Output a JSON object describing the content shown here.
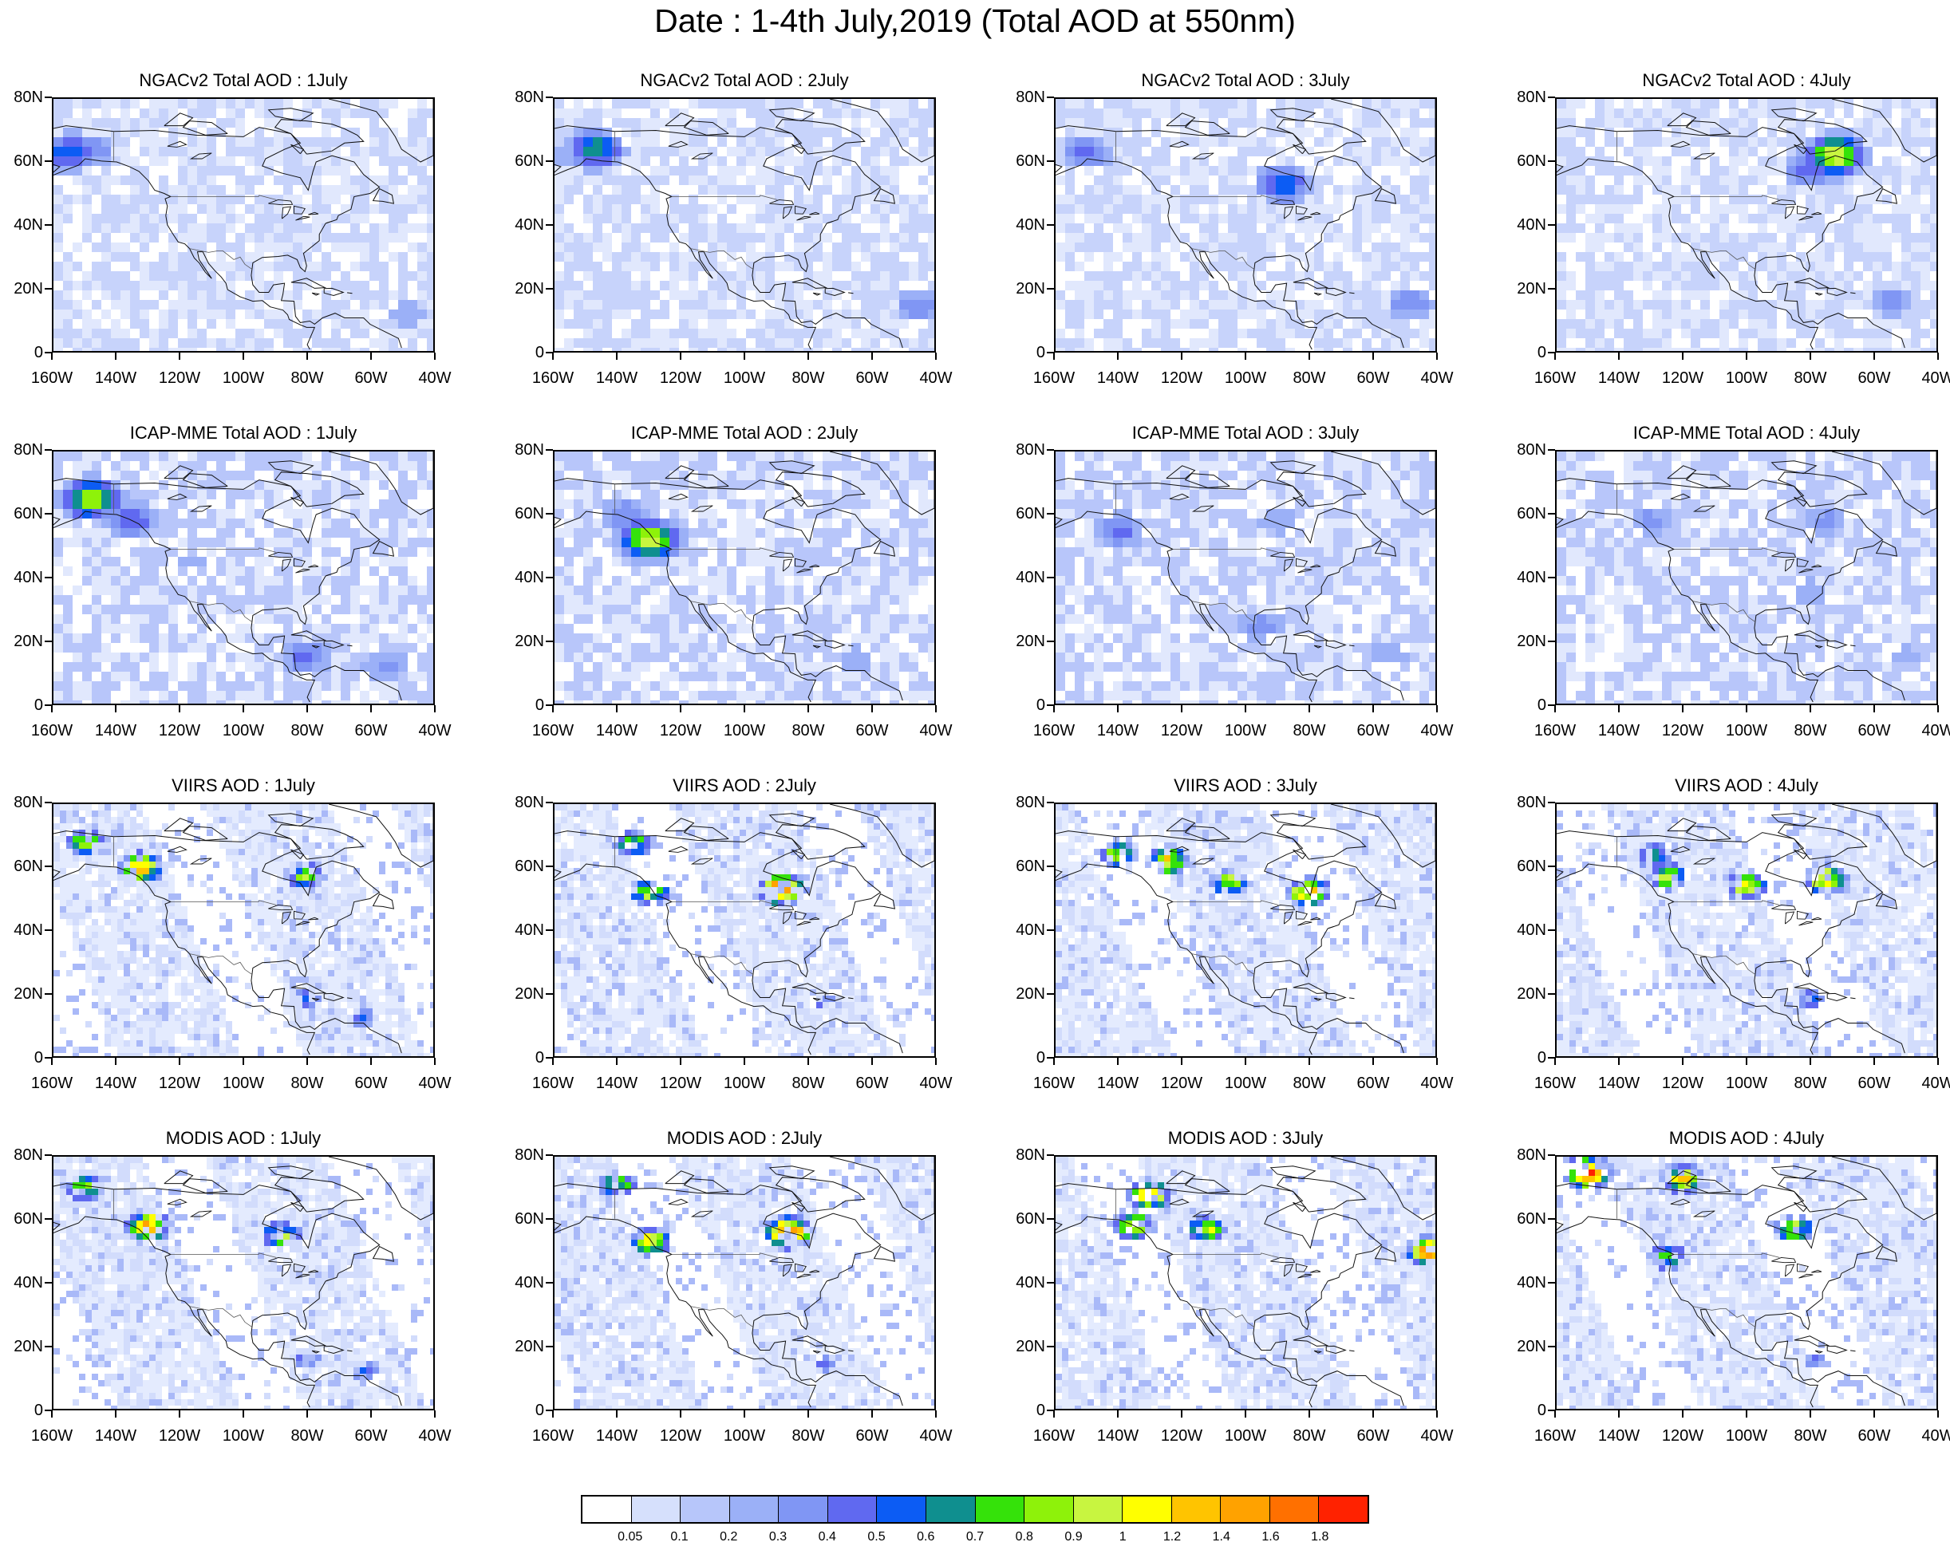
{
  "title": "Date : 1-4th July,2019 (Total AOD at 550nm)",
  "lat_labels": [
    "80N",
    "60N",
    "40N",
    "20N",
    "0"
  ],
  "lon_labels": [
    "160W",
    "140W",
    "120W",
    "100W",
    "80W",
    "60W",
    "40W"
  ],
  "map_extent": {
    "lon_min": -160,
    "lon_max": -40,
    "lat_min": 0,
    "lat_max": 80
  },
  "rows": [
    {
      "id": "ngac",
      "panels": [
        {
          "title": "NGACv2 Total AOD : 1July",
          "style": "model",
          "base": "#c7d3fb",
          "hotspots": [
            {
              "lon": -155,
              "lat": 63,
              "v": 0.6
            },
            {
              "lon": -148,
              "lat": 64,
              "v": 0.4
            },
            {
              "lon": -135,
              "lat": 55,
              "v": 0.2
            },
            {
              "lon": -48,
              "lat": 12,
              "v": 0.3
            },
            {
              "lon": -60,
              "lat": 15,
              "v": 0.2
            }
          ]
        },
        {
          "title": "NGACv2 Total AOD : 2July",
          "style": "model",
          "base": "#c7d3fb",
          "hotspots": [
            {
              "lon": -147,
              "lat": 64,
              "v": 0.7
            },
            {
              "lon": -155,
              "lat": 62,
              "v": 0.3
            },
            {
              "lon": -45,
              "lat": 14,
              "v": 0.4
            },
            {
              "lon": -60,
              "lat": 12,
              "v": 0.2
            }
          ]
        },
        {
          "title": "NGACv2 Total AOD : 3July",
          "style": "model",
          "base": "#c7d3fb",
          "hotspots": [
            {
              "lon": -150,
              "lat": 63,
              "v": 0.45
            },
            {
              "lon": -88,
              "lat": 53,
              "v": 0.6
            },
            {
              "lon": -48,
              "lat": 15,
              "v": 0.4
            },
            {
              "lon": -70,
              "lat": 18,
              "v": 0.2
            }
          ]
        },
        {
          "title": "NGACv2 Total AOD : 4July",
          "style": "model",
          "base": "#c7d3fb",
          "hotspots": [
            {
              "lon": -72,
              "lat": 62,
              "v": 1.0
            },
            {
              "lon": -80,
              "lat": 58,
              "v": 0.5
            },
            {
              "lon": -145,
              "lat": 60,
              "v": 0.2
            },
            {
              "lon": -55,
              "lat": 16,
              "v": 0.35
            }
          ]
        }
      ]
    },
    {
      "id": "icap",
      "panels": [
        {
          "title": "ICAP-MME Total AOD : 1July",
          "style": "model",
          "base": "#b8c6fa",
          "hotspots": [
            {
              "lon": -148,
              "lat": 65,
              "v": 0.9
            },
            {
              "lon": -135,
              "lat": 58,
              "v": 0.5
            },
            {
              "lon": -80,
              "lat": 15,
              "v": 0.45
            },
            {
              "lon": -55,
              "lat": 12,
              "v": 0.35
            },
            {
              "lon": -115,
              "lat": 45,
              "v": 0.25
            }
          ]
        },
        {
          "title": "ICAP-MME Total AOD : 2July",
          "style": "model",
          "base": "#b8c6fa",
          "hotspots": [
            {
              "lon": -130,
              "lat": 52,
              "v": 1.0
            },
            {
              "lon": -138,
              "lat": 60,
              "v": 0.4
            },
            {
              "lon": -105,
              "lat": 42,
              "v": 0.2
            },
            {
              "lon": -65,
              "lat": 14,
              "v": 0.3
            }
          ]
        },
        {
          "title": "ICAP-MME Total AOD : 3July",
          "style": "model",
          "base": "#b8c6fa",
          "hotspots": [
            {
              "lon": -140,
              "lat": 55,
              "v": 0.45
            },
            {
              "lon": -90,
              "lat": 58,
              "v": 0.3
            },
            {
              "lon": -95,
              "lat": 25,
              "v": 0.35
            },
            {
              "lon": -55,
              "lat": 16,
              "v": 0.3
            }
          ]
        },
        {
          "title": "ICAP-MME Total AOD : 4July",
          "style": "model",
          "base": "#b8c6fa",
          "hotspots": [
            {
              "lon": -130,
              "lat": 58,
              "v": 0.35
            },
            {
              "lon": -75,
              "lat": 58,
              "v": 0.35
            },
            {
              "lon": -80,
              "lat": 35,
              "v": 0.3
            },
            {
              "lon": -50,
              "lat": 15,
              "v": 0.25
            }
          ]
        }
      ]
    },
    {
      "id": "viirs",
      "panels": [
        {
          "title": "VIIRS AOD : 1July",
          "style": "satellite",
          "base": "#d2dcfc",
          "hotspots": [
            {
              "lon": -132,
              "lat": 60,
              "v": 1.2
            },
            {
              "lon": -150,
              "lat": 68,
              "v": 0.9
            },
            {
              "lon": -80,
              "lat": 57,
              "v": 0.8
            },
            {
              "lon": -80,
              "lat": 18,
              "v": 0.5
            },
            {
              "lon": -62,
              "lat": 12,
              "v": 0.45
            }
          ]
        },
        {
          "title": "VIIRS AOD : 2July",
          "style": "satellite",
          "base": "#d2dcfc",
          "hotspots": [
            {
              "lon": -88,
              "lat": 53,
              "v": 1.6
            },
            {
              "lon": -130,
              "lat": 52,
              "v": 0.9
            },
            {
              "lon": -135,
              "lat": 67,
              "v": 0.8
            },
            {
              "lon": -75,
              "lat": 18,
              "v": 0.4
            }
          ]
        },
        {
          "title": "VIIRS AOD : 3July",
          "style": "satellite",
          "base": "#d2dcfc",
          "hotspots": [
            {
              "lon": -125,
              "lat": 62,
              "v": 1.1
            },
            {
              "lon": -105,
              "lat": 55,
              "v": 0.9
            },
            {
              "lon": -80,
              "lat": 52,
              "v": 1.2
            },
            {
              "lon": -140,
              "lat": 64,
              "v": 0.8
            }
          ]
        },
        {
          "title": "VIIRS AOD : 4July",
          "style": "satellite",
          "base": "#d2dcfc",
          "hotspots": [
            {
              "lon": -125,
              "lat": 57,
              "v": 0.9
            },
            {
              "lon": -100,
              "lat": 54,
              "v": 1.0
            },
            {
              "lon": -75,
              "lat": 56,
              "v": 1.1
            },
            {
              "lon": -130,
              "lat": 64,
              "v": 0.7
            },
            {
              "lon": -80,
              "lat": 18,
              "v": 0.5
            }
          ]
        }
      ]
    },
    {
      "id": "modis",
      "panels": [
        {
          "title": "MODIS AOD : 1July",
          "style": "satellite",
          "base": "#d2dcfc",
          "hotspots": [
            {
              "lon": -130,
              "lat": 58,
              "v": 1.3
            },
            {
              "lon": -150,
              "lat": 70,
              "v": 0.9
            },
            {
              "lon": -88,
              "lat": 55,
              "v": 0.9
            },
            {
              "lon": -80,
              "lat": 16,
              "v": 0.45
            },
            {
              "lon": -62,
              "lat": 12,
              "v": 0.45
            }
          ]
        },
        {
          "title": "MODIS AOD : 2July",
          "style": "satellite",
          "base": "#d2dcfc",
          "hotspots": [
            {
              "lon": -130,
              "lat": 53,
              "v": 1.0
            },
            {
              "lon": -86,
              "lat": 56,
              "v": 1.7
            },
            {
              "lon": -140,
              "lat": 71,
              "v": 0.8
            },
            {
              "lon": -75,
              "lat": 14,
              "v": 0.4
            }
          ]
        },
        {
          "title": "MODIS AOD : 3July",
          "style": "satellite",
          "base": "#d2dcfc",
          "hotspots": [
            {
              "lon": -130,
              "lat": 68,
              "v": 1.2
            },
            {
              "lon": -135,
              "lat": 58,
              "v": 1.0
            },
            {
              "lon": -112,
              "lat": 57,
              "v": 0.9
            },
            {
              "lon": -42,
              "lat": 50,
              "v": 1.3
            }
          ]
        },
        {
          "title": "MODIS AOD : 4July",
          "style": "satellite",
          "base": "#d2dcfc",
          "hotspots": [
            {
              "lon": -120,
              "lat": 73,
              "v": 1.1
            },
            {
              "lon": -150,
              "lat": 75,
              "v": 1.7
            },
            {
              "lon": -85,
              "lat": 57,
              "v": 0.9
            },
            {
              "lon": -125,
              "lat": 48,
              "v": 0.8
            },
            {
              "lon": -78,
              "lat": 15,
              "v": 0.4
            }
          ]
        }
      ]
    }
  ],
  "colorbar": {
    "labels": [
      "0.05",
      "0.1",
      "0.2",
      "0.3",
      "0.4",
      "0.5",
      "0.6",
      "0.7",
      "0.8",
      "0.9",
      "1",
      "1.2",
      "1.4",
      "1.6",
      "1.8"
    ],
    "levels": [
      0.05,
      0.1,
      0.2,
      0.3,
      0.4,
      0.5,
      0.6,
      0.7,
      0.8,
      0.9,
      1,
      1.2,
      1.4,
      1.6,
      1.8
    ],
    "colors": [
      "#ffffff",
      "#d6e0fc",
      "#b7c6fa",
      "#9bb0f7",
      "#8096f4",
      "#6069f0",
      "#0c5cf4",
      "#0f8f8f",
      "#35e20a",
      "#8ef20a",
      "#c8f540",
      "#ffff00",
      "#ffc400",
      "#ffa200",
      "#ff7000",
      "#ff2200"
    ]
  }
}
